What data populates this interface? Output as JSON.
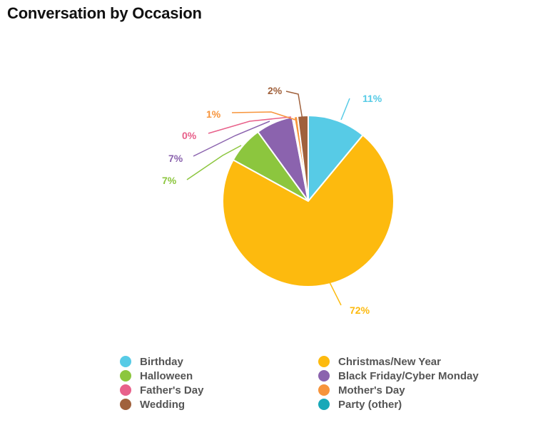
{
  "chart_data": {
    "type": "pie",
    "title": "Conversation by Occasion",
    "slices": [
      {
        "name": "Birthday",
        "value": 11,
        "label": "11%",
        "color": "#57CBE6"
      },
      {
        "name": "Christmas/New Year",
        "value": 72,
        "label": "72%",
        "color": "#FDBA0E"
      },
      {
        "name": "Halloween",
        "value": 7,
        "label": "7%",
        "color": "#8CC63E"
      },
      {
        "name": "Black Friday/Cyber Monday",
        "value": 7,
        "label": "7%",
        "color": "#8B63AE"
      },
      {
        "name": "Father's Day",
        "value": 0.3,
        "label": "0%",
        "color": "#E8608A"
      },
      {
        "name": "Mother's Day",
        "value": 0.7,
        "label": "1%",
        "color": "#F7943B"
      },
      {
        "name": "Wedding",
        "value": 2,
        "label": "2%",
        "color": "#A0613C"
      },
      {
        "name": "Party (other)",
        "value": 0,
        "label": "",
        "color": "#18A8B8"
      }
    ],
    "legend_position": "bottom"
  }
}
